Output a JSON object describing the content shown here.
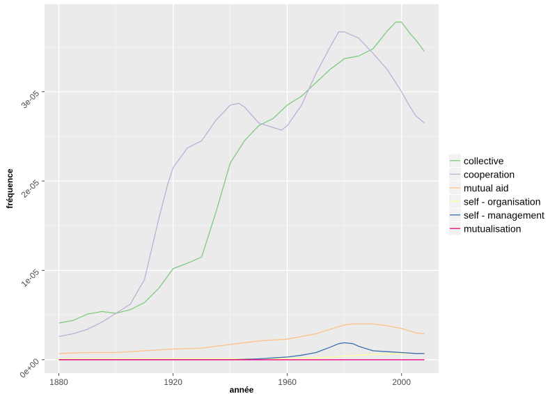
{
  "chart_data": {
    "type": "line",
    "xlabel": "année",
    "ylabel": "fréquence",
    "xlim": [
      1875,
      2013
    ],
    "ylim": [
      -1.5e-06,
      3.98e-05
    ],
    "x_ticks": [
      1880,
      1920,
      1960,
      2000
    ],
    "x_tick_labels": [
      "1880",
      "1920",
      "1960",
      "2000"
    ],
    "y_ticks": [
      0,
      1e-05,
      2e-05,
      3e-05
    ],
    "y_tick_labels": [
      "0e+00",
      "1e-05",
      "2e-05",
      "3e-05"
    ],
    "grid": true,
    "legend_position": "right",
    "series": [
      {
        "name": "collective",
        "color": "#7fc97f",
        "x": [
          1880,
          1885,
          1890,
          1895,
          1900,
          1905,
          1910,
          1915,
          1920,
          1925,
          1930,
          1935,
          1940,
          1945,
          1950,
          1955,
          1960,
          1965,
          1970,
          1975,
          1980,
          1985,
          1990,
          1995,
          1998,
          2000,
          2003,
          2005,
          2008
        ],
        "y": [
          4.1e-06,
          4.4e-06,
          5.1e-06,
          5.4e-06,
          5.2e-06,
          5.6e-06,
          6.4e-06,
          8e-06,
          1.02e-05,
          1.08e-05,
          1.15e-05,
          1.65e-05,
          2.2e-05,
          2.45e-05,
          2.62e-05,
          2.7e-05,
          2.85e-05,
          2.95e-05,
          3.1e-05,
          3.25e-05,
          3.37e-05,
          3.4e-05,
          3.48e-05,
          3.68e-05,
          3.78e-05,
          3.78e-05,
          3.65e-05,
          3.58e-05,
          3.45e-05
        ]
      },
      {
        "name": "cooperation",
        "color": "#beaed4",
        "x": [
          1880,
          1885,
          1890,
          1895,
          1900,
          1905,
          1910,
          1915,
          1918,
          1920,
          1925,
          1930,
          1935,
          1940,
          1943,
          1945,
          1950,
          1955,
          1958,
          1960,
          1965,
          1970,
          1975,
          1978,
          1980,
          1985,
          1990,
          1995,
          2000,
          2003,
          2005,
          2008
        ],
        "y": [
          2.6e-06,
          2.9e-06,
          3.4e-06,
          4.2e-06,
          5.2e-06,
          6.2e-06,
          9e-06,
          1.58e-05,
          1.95e-05,
          2.15e-05,
          2.37e-05,
          2.45e-05,
          2.68e-05,
          2.85e-05,
          2.87e-05,
          2.83e-05,
          2.65e-05,
          2.6e-05,
          2.57e-05,
          2.62e-05,
          2.85e-05,
          3.2e-05,
          3.5e-05,
          3.67e-05,
          3.67e-05,
          3.6e-05,
          3.43e-05,
          3.25e-05,
          3e-05,
          2.83e-05,
          2.73e-05,
          2.65e-05
        ]
      },
      {
        "name": "mutual aid",
        "color": "#fdc086",
        "x": [
          1880,
          1890,
          1900,
          1910,
          1920,
          1930,
          1940,
          1950,
          1960,
          1970,
          1975,
          1980,
          1983,
          1990,
          1995,
          2000,
          2005,
          2008
        ],
        "y": [
          7e-07,
          8e-07,
          8e-07,
          1e-06,
          1.2e-06,
          1.3e-06,
          1.7e-06,
          2.1e-06,
          2.3e-06,
          2.9e-06,
          3.4e-06,
          3.9e-06,
          4e-06,
          4e-06,
          3.8e-06,
          3.5e-06,
          3e-06,
          2.9e-06
        ]
      },
      {
        "name": "self - organisation",
        "color": "#ffff99",
        "x": [
          1880,
          1920,
          1950,
          1970,
          1980,
          1990,
          2000,
          2008
        ],
        "y": [
          1e-07,
          1e-07,
          1e-07,
          2e-07,
          4e-07,
          6e-07,
          7e-07,
          7e-07
        ]
      },
      {
        "name": "self - management",
        "color": "#386cb0",
        "x": [
          1880,
          1940,
          1950,
          1955,
          1960,
          1965,
          1970,
          1975,
          1978,
          1980,
          1983,
          1985,
          1990,
          1995,
          2000,
          2005,
          2008
        ],
        "y": [
          0,
          0,
          1e-07,
          2e-07,
          3e-07,
          5e-07,
          8e-07,
          1.4e-06,
          1.8e-06,
          1.9e-06,
          1.8e-06,
          1.5e-06,
          1e-06,
          9e-07,
          8e-07,
          7e-07,
          7e-07
        ]
      },
      {
        "name": "mutualisation",
        "color": "#f0027f",
        "x": [
          1880,
          1950,
          2008
        ],
        "y": [
          0,
          0,
          0
        ]
      }
    ]
  }
}
